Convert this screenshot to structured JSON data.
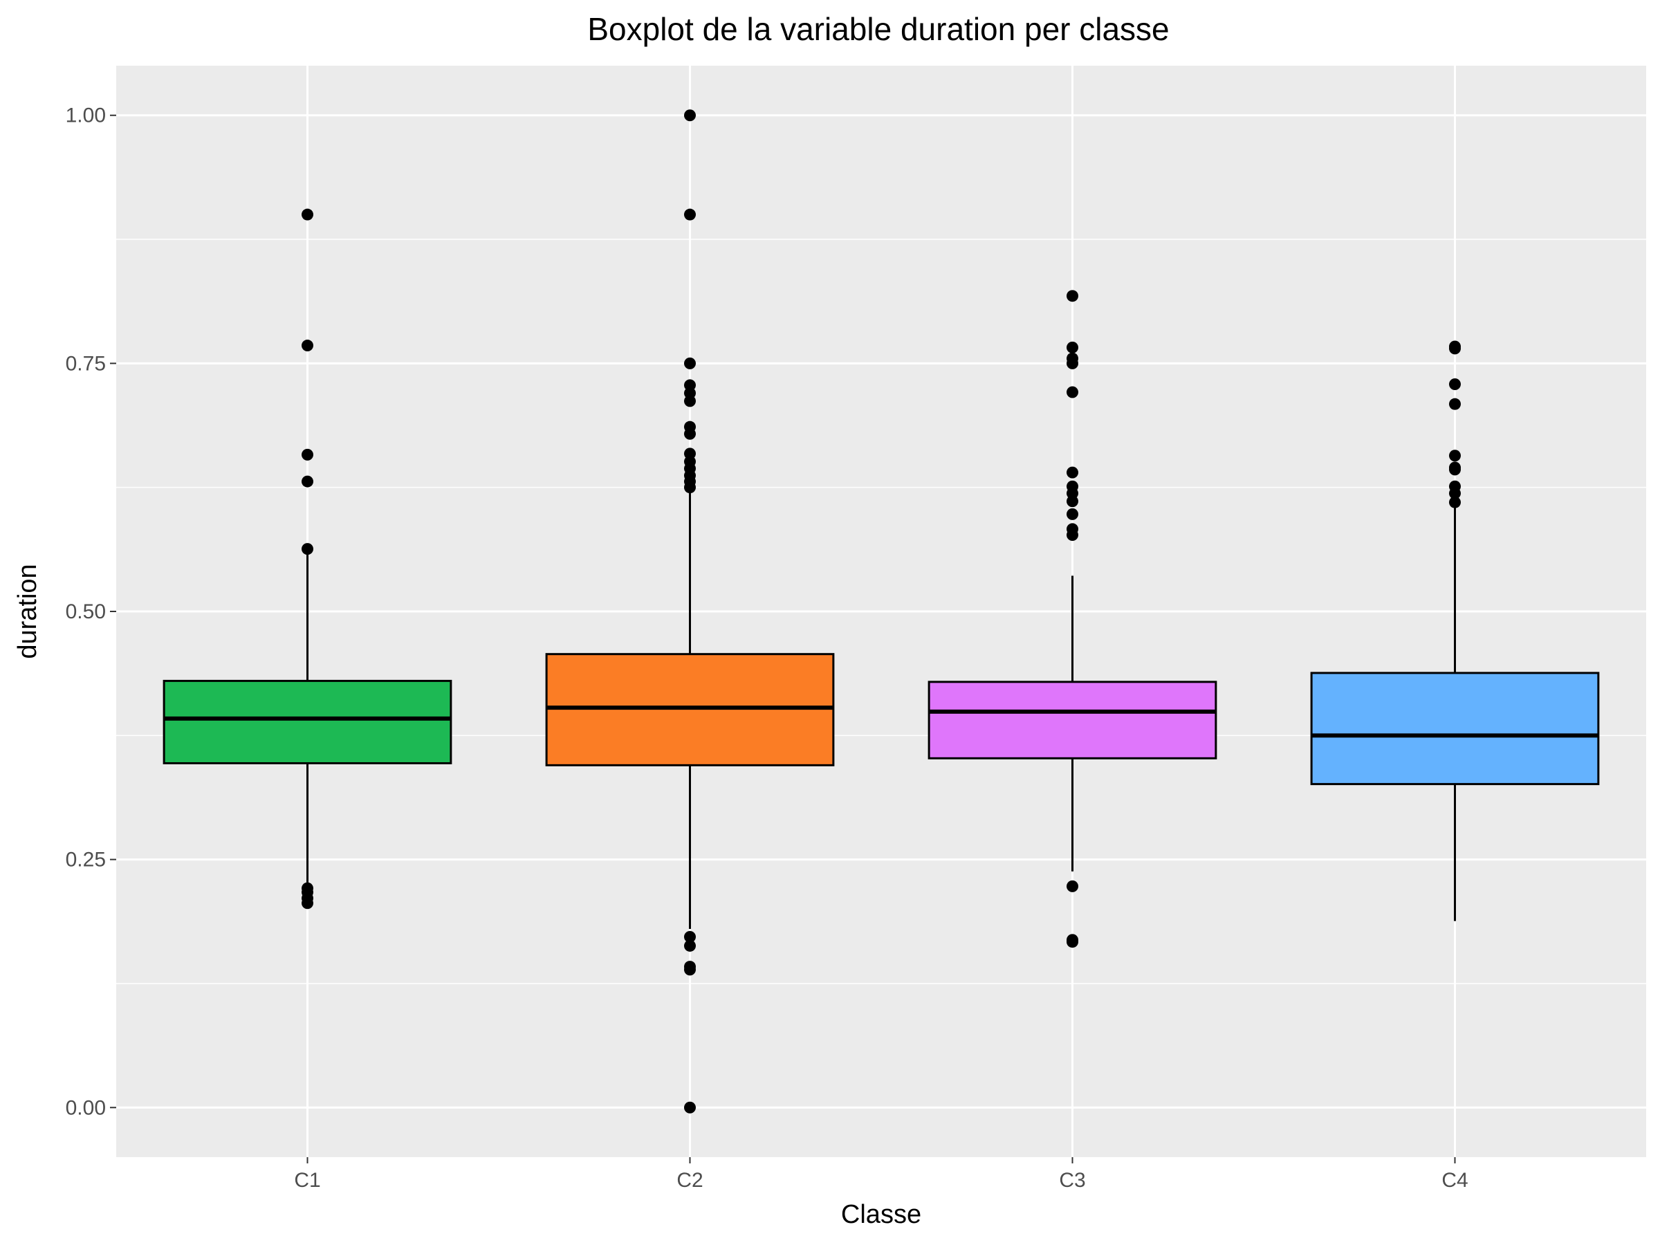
{
  "chart_data": {
    "type": "boxplot",
    "title": "Boxplot de la variable duration per classe",
    "xlabel": "Classe",
    "ylabel": "duration",
    "ylim": [
      -0.05,
      1.05
    ],
    "yticks": [
      "0.00",
      "0.25",
      "0.50",
      "0.75",
      "1.00"
    ],
    "grid": true,
    "legend": "none",
    "categories": [
      "C1",
      "C2",
      "C3",
      "C4"
    ],
    "boxes": [
      {
        "category": "C1",
        "fill": "#1db954",
        "q1": 0.347,
        "median": 0.392,
        "q3": 0.43,
        "whisker_low": 0.225,
        "whisker_high": 0.56,
        "outliers": [
          0.9,
          0.768,
          0.658,
          0.631,
          0.563,
          0.221,
          0.217,
          0.211,
          0.206
        ]
      },
      {
        "category": "C2",
        "fill": "#fb7d25",
        "q1": 0.345,
        "median": 0.403,
        "q3": 0.457,
        "whisker_low": 0.18,
        "whisker_high": 0.625,
        "outliers": [
          1.0,
          0.9,
          0.75,
          0.728,
          0.72,
          0.712,
          0.686,
          0.679,
          0.659,
          0.651,
          0.644,
          0.637,
          0.631,
          0.625,
          0.172,
          0.163,
          0.142,
          0.139,
          0.0
        ]
      },
      {
        "category": "C3",
        "fill": "#df76fb",
        "q1": 0.352,
        "median": 0.399,
        "q3": 0.429,
        "whisker_low": 0.238,
        "whisker_high": 0.536,
        "outliers": [
          0.818,
          0.766,
          0.755,
          0.75,
          0.721,
          0.64,
          0.626,
          0.619,
          0.611,
          0.598,
          0.583,
          0.577,
          0.223,
          0.169,
          0.167
        ]
      },
      {
        "category": "C4",
        "fill": "#64b2fe",
        "q1": 0.326,
        "median": 0.375,
        "q3": 0.438,
        "whisker_low": 0.188,
        "whisker_high": 0.605,
        "outliers": [
          0.767,
          0.765,
          0.729,
          0.709,
          0.657,
          0.645,
          0.643,
          0.626,
          0.619,
          0.61
        ]
      }
    ]
  }
}
